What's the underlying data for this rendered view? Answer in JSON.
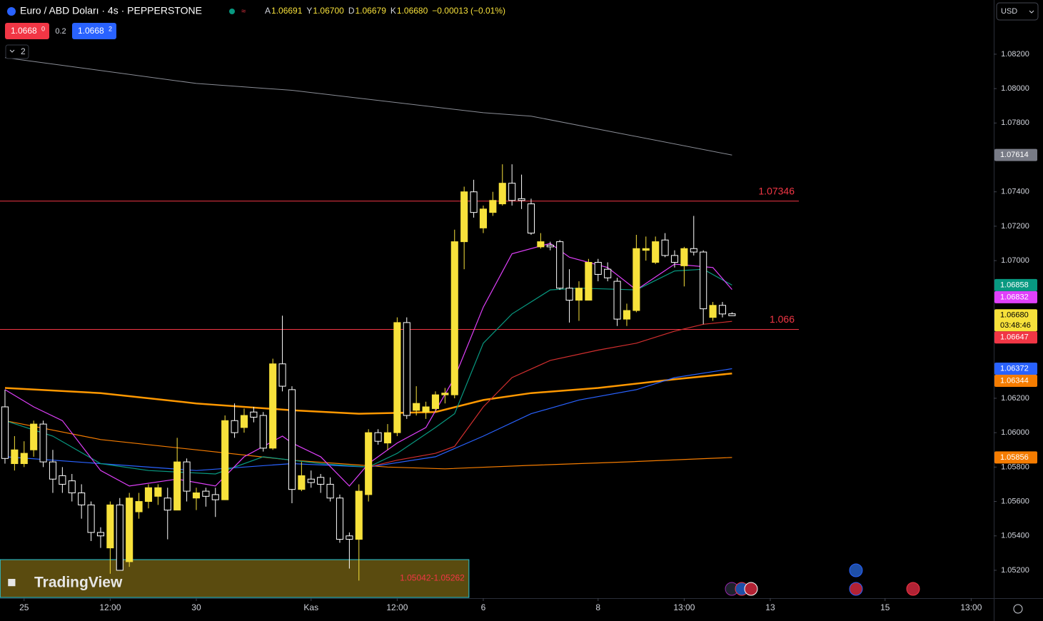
{
  "header": {
    "symbol": "Euro / ABD Doları · 4s · PEPPERSTONE",
    "ohlc": [
      {
        "key": "A",
        "value": "1.06691"
      },
      {
        "key": "Y",
        "value": "1.06700"
      },
      {
        "key": "D",
        "value": "1.06679"
      },
      {
        "key": "K",
        "value": "1.06680"
      }
    ],
    "change": "−0.00013 (−0.01%)",
    "sell": {
      "price": "1.0668",
      "pip": "0"
    },
    "spread": "0.2",
    "buy": {
      "price": "1.0668",
      "pip": "2"
    },
    "indicators_count": "2",
    "currency": "USD"
  },
  "watermark": "TradingView",
  "chart_data": {
    "type": "candlestick",
    "x": [
      0,
      1,
      2,
      3,
      4,
      5,
      6,
      7,
      8,
      9,
      10,
      11,
      12,
      13,
      14,
      15,
      16,
      17,
      18,
      19,
      20,
      21,
      22,
      23,
      24,
      25,
      26,
      27,
      28,
      29,
      30,
      31,
      32,
      33,
      34,
      35,
      36,
      37,
      38,
      39,
      40,
      41,
      42,
      43,
      44,
      45,
      46,
      47,
      48,
      49,
      50,
      51,
      52,
      53,
      54,
      55,
      56,
      57,
      58,
      59,
      60,
      61,
      62,
      63,
      64,
      65,
      66,
      67,
      68,
      69,
      70,
      71,
      72,
      73,
      74,
      75,
      76
    ],
    "open": [
      1.0615,
      1.0582,
      1.0582,
      1.059,
      1.0605,
      1.0583,
      1.0575,
      1.0572,
      1.0565,
      1.0558,
      1.0542,
      1.0533,
      1.0558,
      1.0525,
      1.0554,
      1.056,
      1.0563,
      1.0562,
      1.0555,
      1.0583,
      1.0562,
      1.0566,
      1.0564,
      1.0561,
      1.0607,
      1.0603,
      1.0612,
      1.061,
      1.0591,
      1.064,
      1.0625,
      1.0567,
      1.0573,
      1.0574,
      1.057,
      1.0562,
      1.054,
      1.0538,
      1.0564,
      1.06,
      1.0594,
      1.06,
      1.0664,
      1.0613,
      1.0612,
      1.0614,
      1.0622,
      1.0622,
      1.0711,
      1.074,
      1.0719,
      1.0728,
      1.0733,
      1.0745,
      1.0736,
      1.0733,
      1.0708,
      1.0709,
      1.0711,
      1.0684,
      1.0677,
      1.0677,
      1.0699,
      1.0695,
      1.0688,
      1.0666,
      1.0671,
      1.0706,
      1.0699,
      1.0712,
      1.0703,
      1.0697,
      1.0707,
      1.0705,
      1.0667,
      1.0674,
      1.06691
    ],
    "high": [
      1.0625,
      1.0598,
      1.0595,
      1.0607,
      1.0607,
      1.059,
      1.058,
      1.0576,
      1.057,
      1.056,
      1.0545,
      1.056,
      1.0562,
      1.0565,
      1.0565,
      1.057,
      1.057,
      1.0568,
      1.0597,
      1.0585,
      1.0568,
      1.0568,
      1.0568,
      1.061,
      1.0617,
      1.0614,
      1.0615,
      1.0612,
      1.0643,
      1.0668,
      1.0627,
      1.0583,
      1.0578,
      1.0576,
      1.0574,
      1.0564,
      1.0542,
      1.057,
      1.0602,
      1.0602,
      1.0605,
      1.0667,
      1.0667,
      1.0627,
      1.0618,
      1.0624,
      1.0626,
      1.0718,
      1.0743,
      1.0747,
      1.0732,
      1.074,
      1.0756,
      1.0756,
      1.075,
      1.0736,
      1.0716,
      1.0711,
      1.0712,
      1.0695,
      1.0688,
      1.0701,
      1.0701,
      1.0699,
      1.069,
      1.0675,
      1.0715,
      1.0714,
      1.0714,
      1.0716,
      1.0706,
      1.0708,
      1.0726,
      1.0706,
      1.0676,
      1.0676,
      1.067
    ],
    "low": [
      1.0582,
      1.0578,
      1.058,
      1.0586,
      1.058,
      1.0565,
      1.0565,
      1.056,
      1.055,
      1.0537,
      1.0533,
      1.0518,
      1.052,
      1.0522,
      1.055,
      1.0556,
      1.0558,
      1.0538,
      1.0555,
      1.056,
      1.0555,
      1.0557,
      1.0551,
      1.0561,
      1.0597,
      1.06,
      1.0606,
      1.0589,
      1.059,
      1.0624,
      1.0559,
      1.0566,
      1.0568,
      1.0565,
      1.056,
      1.0536,
      1.0521,
      1.0514,
      1.056,
      1.0593,
      1.059,
      1.0598,
      1.0608,
      1.061,
      1.0608,
      1.0612,
      1.0617,
      1.062,
      1.0695,
      1.0725,
      1.0716,
      1.0726,
      1.0732,
      1.0732,
      1.073,
      1.0715,
      1.0707,
      1.0706,
      1.0683,
      1.0664,
      1.0665,
      1.0677,
      1.0688,
      1.0688,
      1.0662,
      1.0662,
      1.067,
      1.07,
      1.0698,
      1.0702,
      1.0696,
      1.0685,
      1.0703,
      1.0663,
      1.0665,
      1.0667,
      1.06679
    ],
    "close": [
      1.0585,
      1.059,
      1.0588,
      1.0605,
      1.0583,
      1.0573,
      1.057,
      1.0565,
      1.0558,
      1.0542,
      1.054,
      1.0558,
      1.052,
      1.0562,
      1.056,
      1.0568,
      1.0568,
      1.0555,
      1.0583,
      1.0566,
      1.0565,
      1.0563,
      1.0561,
      1.0607,
      1.06,
      1.061,
      1.0609,
      1.0591,
      1.064,
      1.0627,
      1.0567,
      1.0575,
      1.0571,
      1.057,
      1.0562,
      1.0538,
      1.0538,
      1.0566,
      1.06,
      1.0595,
      1.06,
      1.0664,
      1.061,
      1.0617,
      1.0615,
      1.0622,
      1.0623,
      1.0711,
      1.074,
      1.0728,
      1.073,
      1.0735,
      1.0745,
      1.0735,
      1.0735,
      1.0716,
      1.0711,
      1.0708,
      1.0684,
      1.0677,
      1.0684,
      1.0699,
      1.0692,
      1.069,
      1.0666,
      1.0671,
      1.0707,
      1.0707,
      1.0711,
      1.0703,
      1.0699,
      1.0707,
      1.0705,
      1.0672,
      1.0674,
      1.0669,
      1.0668
    ],
    "up_color": "#f7e13b",
    "down_color": "#ffffff",
    "series": [
      {
        "color": "#8a8d96",
        "width": 1,
        "x": [
          0,
          20,
          30,
          50,
          55,
          76
        ],
        "values": [
          1.0818,
          1.0803,
          1.0799,
          1.0786,
          1.0784,
          1.07614
        ]
      },
      {
        "color": "#f57c00",
        "width": 1.2,
        "x": [
          0,
          10,
          20,
          30,
          40,
          46,
          55,
          65,
          76
        ],
        "values": [
          1.0607,
          1.0596,
          1.059,
          1.0584,
          1.058,
          1.0579,
          1.0581,
          1.0583,
          1.05856
        ]
      },
      {
        "color": "#ff9800",
        "width": 2.5,
        "x": [
          0,
          10,
          20,
          30,
          37,
          45,
          50,
          55,
          62,
          70,
          76
        ],
        "values": [
          1.0626,
          1.0623,
          1.0617,
          1.0613,
          1.0611,
          1.0612,
          1.0619,
          1.0623,
          1.0626,
          1.0631,
          1.06344
        ]
      },
      {
        "color": "#2962ff",
        "width": 1.2,
        "x": [
          0,
          10,
          20,
          30,
          38,
          45,
          50,
          55,
          60,
          66,
          70,
          76
        ],
        "values": [
          1.0586,
          1.0582,
          1.0578,
          1.0582,
          1.058,
          1.0586,
          1.0598,
          1.0611,
          1.0619,
          1.0625,
          1.0632,
          1.06372
        ]
      },
      {
        "color": "#d32f2f",
        "width": 1.2,
        "x": [
          38,
          41,
          45,
          47,
          50,
          53,
          57,
          62,
          66,
          70,
          73,
          76
        ],
        "values": [
          1.058,
          1.0584,
          1.0588,
          1.0592,
          1.0615,
          1.0632,
          1.0642,
          1.0648,
          1.0652,
          1.0659,
          1.0663,
          1.06647
        ]
      },
      {
        "color": "#089981",
        "width": 1.2,
        "x": [
          0,
          5,
          10,
          15,
          22,
          27,
          33,
          38,
          41,
          45,
          47,
          50,
          53,
          57,
          60,
          66,
          70,
          73,
          76
        ],
        "values": [
          1.0607,
          1.0598,
          1.0582,
          1.0578,
          1.0576,
          1.0586,
          1.0582,
          1.058,
          1.0588,
          1.0603,
          1.0611,
          1.0652,
          1.0669,
          1.0683,
          1.0684,
          1.0683,
          1.0694,
          1.0695,
          1.06858
        ]
      },
      {
        "color": "#e040fb",
        "width": 1.2,
        "x": [
          0,
          3,
          6,
          10,
          13,
          18,
          22,
          25,
          29,
          30,
          33,
          36,
          38,
          41,
          44,
          47,
          50,
          53,
          57,
          59,
          63,
          66,
          70,
          74,
          76
        ],
        "values": [
          1.0625,
          1.0615,
          1.0607,
          1.0578,
          1.0569,
          1.0573,
          1.0569,
          1.0586,
          1.0598,
          1.0594,
          1.0586,
          1.0569,
          1.0582,
          1.0594,
          1.0603,
          1.0632,
          1.0673,
          1.0704,
          1.071,
          1.0702,
          1.0696,
          1.0683,
          1.0698,
          1.0696,
          1.06832
        ]
      }
    ],
    "levels": [
      {
        "value": 1.07346,
        "color": "#f23645"
      },
      {
        "value": 1.066,
        "color": "#f23645"
      }
    ],
    "zone": {
      "label": "1.05042-1.05262",
      "low": 1.05042,
      "high": 1.05262,
      "x": [
        0,
        48
      ]
    },
    "price_badges": [
      {
        "value": 1.07614,
        "color": "#787b86"
      },
      {
        "value": 1.06858,
        "color": "#089981"
      },
      {
        "value": 1.06832,
        "color": "#e040fb"
      },
      {
        "value": 1.0668,
        "label": "1.06680",
        "countdown": "03:48:46",
        "color": "#f7e13b"
      },
      {
        "value": 1.06647,
        "color": "#f23645"
      },
      {
        "value": 1.06372,
        "color": "#2962ff"
      },
      {
        "value": 1.06344,
        "color": "#f57c00"
      },
      {
        "value": 1.05856,
        "color": "#f57c00"
      }
    ],
    "ylim": [
      1.05038,
      1.08515
    ],
    "yticks": [
      {
        "value": 1.082,
        "label": "1.08200"
      },
      {
        "value": 1.08,
        "label": "1.08000"
      },
      {
        "value": 1.078,
        "label": "1.07800"
      },
      {
        "value": 1.074,
        "label": "1.07400"
      },
      {
        "value": 1.072,
        "label": "1.07200"
      },
      {
        "value": 1.07,
        "label": "1.07000"
      },
      {
        "value": 1.062,
        "label": "1.06200"
      },
      {
        "value": 1.06,
        "label": "1.06000"
      },
      {
        "value": 1.058,
        "label": "1.05800"
      },
      {
        "value": 1.056,
        "label": "1.05600"
      },
      {
        "value": 1.054,
        "label": "1.05400"
      },
      {
        "value": 1.052,
        "label": "1.05200"
      }
    ],
    "xlim": [
      -0.52,
      103.36
    ],
    "xticks": [
      {
        "value": 2,
        "label": "25"
      },
      {
        "value": 11,
        "label": "12:00"
      },
      {
        "value": 20,
        "label": "30"
      },
      {
        "value": 32,
        "label": "Kas"
      },
      {
        "value": 41,
        "label": "12:00"
      },
      {
        "value": 50,
        "label": "6"
      },
      {
        "value": 62,
        "label": "8"
      },
      {
        "value": 71,
        "label": "13:00"
      },
      {
        "value": 80,
        "label": "13"
      },
      {
        "value": 92,
        "label": "15"
      },
      {
        "value": 101,
        "label": "13:00"
      }
    ]
  }
}
